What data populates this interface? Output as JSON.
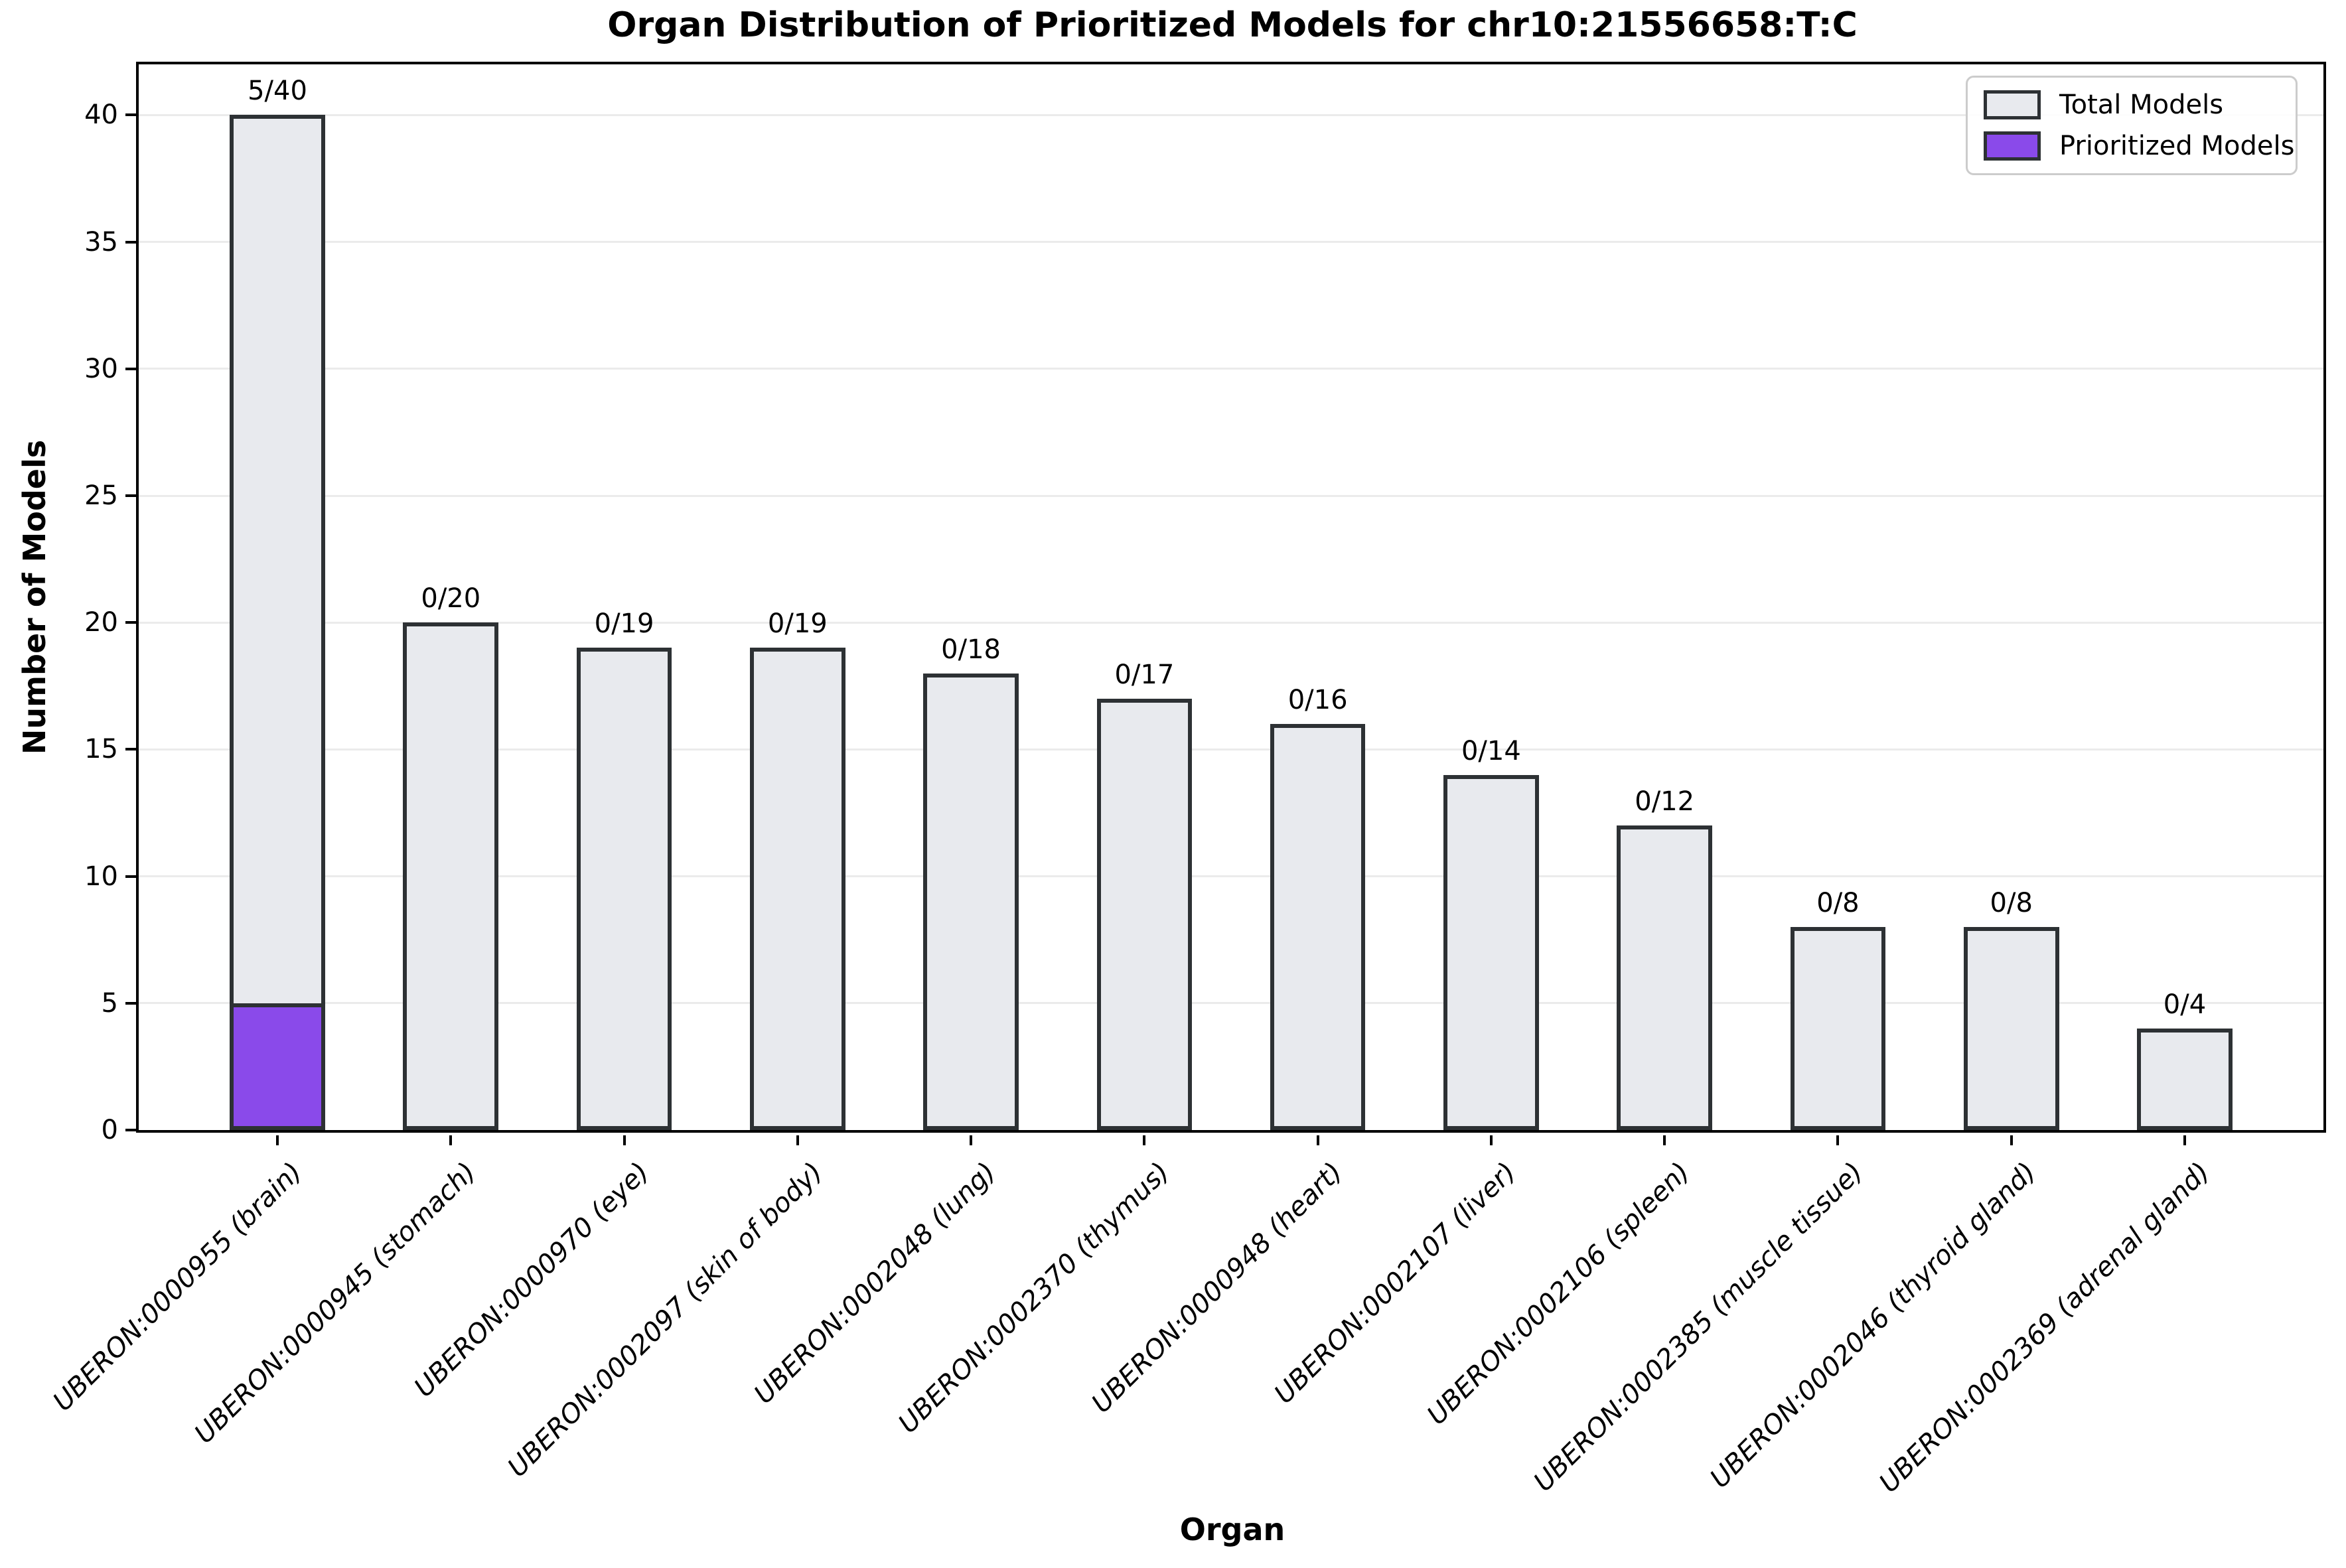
{
  "chart_data": {
    "type": "bar",
    "style": "stacked-overlay",
    "title": "Organ Distribution of Prioritized Models for chr10:21556658:T:C",
    "xlabel": "Organ",
    "ylabel": "Number of Models",
    "ylim": [
      0,
      42
    ],
    "yticks": [
      0,
      5,
      10,
      15,
      20,
      25,
      30,
      35,
      40
    ],
    "grid": "horizontal",
    "legend_position": "upper right",
    "categories": [
      "UBERON:0000955 (brain)",
      "UBERON:0000945 (stomach)",
      "UBERON:0000970 (eye)",
      "UBERON:0002097 (skin of body)",
      "UBERON:0002048 (lung)",
      "UBERON:0002370 (thymus)",
      "UBERON:0000948 (heart)",
      "UBERON:0002107 (liver)",
      "UBERON:0002106 (spleen)",
      "UBERON:0002385 (muscle tissue)",
      "UBERON:0002046 (thyroid gland)",
      "UBERON:0002369 (adrenal gland)"
    ],
    "series": [
      {
        "name": "Total Models",
        "color": "#E8EAEE",
        "edge_color": "#2D3134",
        "values": [
          40,
          20,
          19,
          19,
          18,
          17,
          16,
          14,
          12,
          8,
          8,
          4
        ]
      },
      {
        "name": "Prioritized Models",
        "color": "#8A4AEA",
        "edge_color": "#2D3134",
        "values": [
          5,
          0,
          0,
          0,
          0,
          0,
          0,
          0,
          0,
          0,
          0,
          0
        ]
      }
    ],
    "bar_labels": [
      "5/40",
      "0/20",
      "0/19",
      "0/19",
      "0/18",
      "0/17",
      "0/16",
      "0/14",
      "0/12",
      "0/8",
      "0/8",
      "0/4"
    ]
  },
  "colors": {
    "background": "#FFFFFF",
    "spine": "#000000",
    "gridline": "#EBEBEB",
    "bar_fill_total": "#E8EAEE",
    "bar_fill_prioritized": "#8A4AEA",
    "bar_edge": "#2D3134",
    "legend_border": "#CCCCCC"
  }
}
